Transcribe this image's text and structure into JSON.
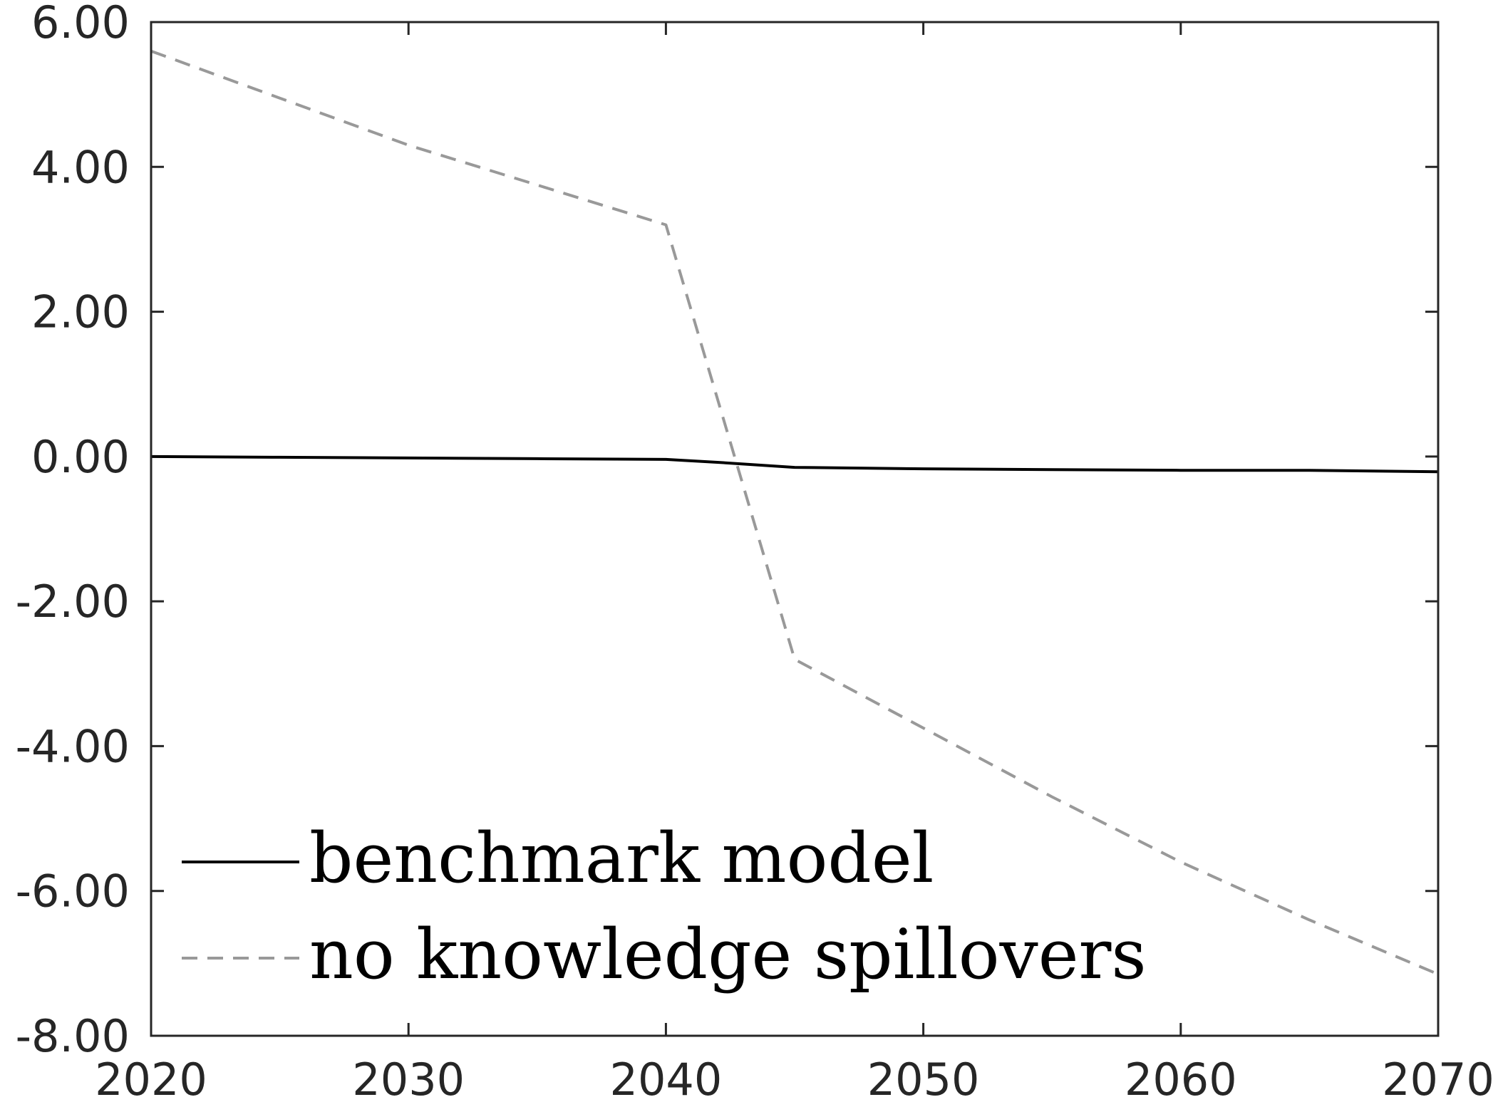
{
  "chart_data": {
    "type": "line",
    "title": "",
    "xlabel": "",
    "ylabel": "",
    "xlim": [
      2020,
      2070
    ],
    "ylim": [
      -8,
      6
    ],
    "grid": false,
    "legend_placement": "bottom-left",
    "x_ticks": [
      "2020",
      "2030",
      "2040",
      "2050",
      "2060",
      "2070"
    ],
    "y_ticks": [
      "6.00",
      "4.00",
      "2.00",
      "0.00",
      "-2.00",
      "-4.00",
      "-6.00",
      "-8.00"
    ],
    "series": [
      {
        "name": "benchmark model",
        "color": "#000000",
        "style": "solid",
        "x": [
          2020,
          2025,
          2030,
          2035,
          2040,
          2042,
          2045,
          2050,
          2055,
          2060,
          2065,
          2070
        ],
        "y": [
          0.0,
          -0.01,
          -0.02,
          -0.03,
          -0.04,
          -0.08,
          -0.15,
          -0.17,
          -0.18,
          -0.19,
          -0.19,
          -0.21
        ]
      },
      {
        "name": "no knowledge spillovers",
        "color": "#999999",
        "style": "dashed",
        "x": [
          2020,
          2025,
          2030,
          2035,
          2040,
          2045,
          2050,
          2055,
          2060,
          2065,
          2070
        ],
        "y": [
          5.6,
          4.95,
          4.3,
          3.75,
          3.2,
          -2.8,
          -3.75,
          -4.7,
          -5.6,
          -6.4,
          -7.15
        ]
      }
    ]
  }
}
